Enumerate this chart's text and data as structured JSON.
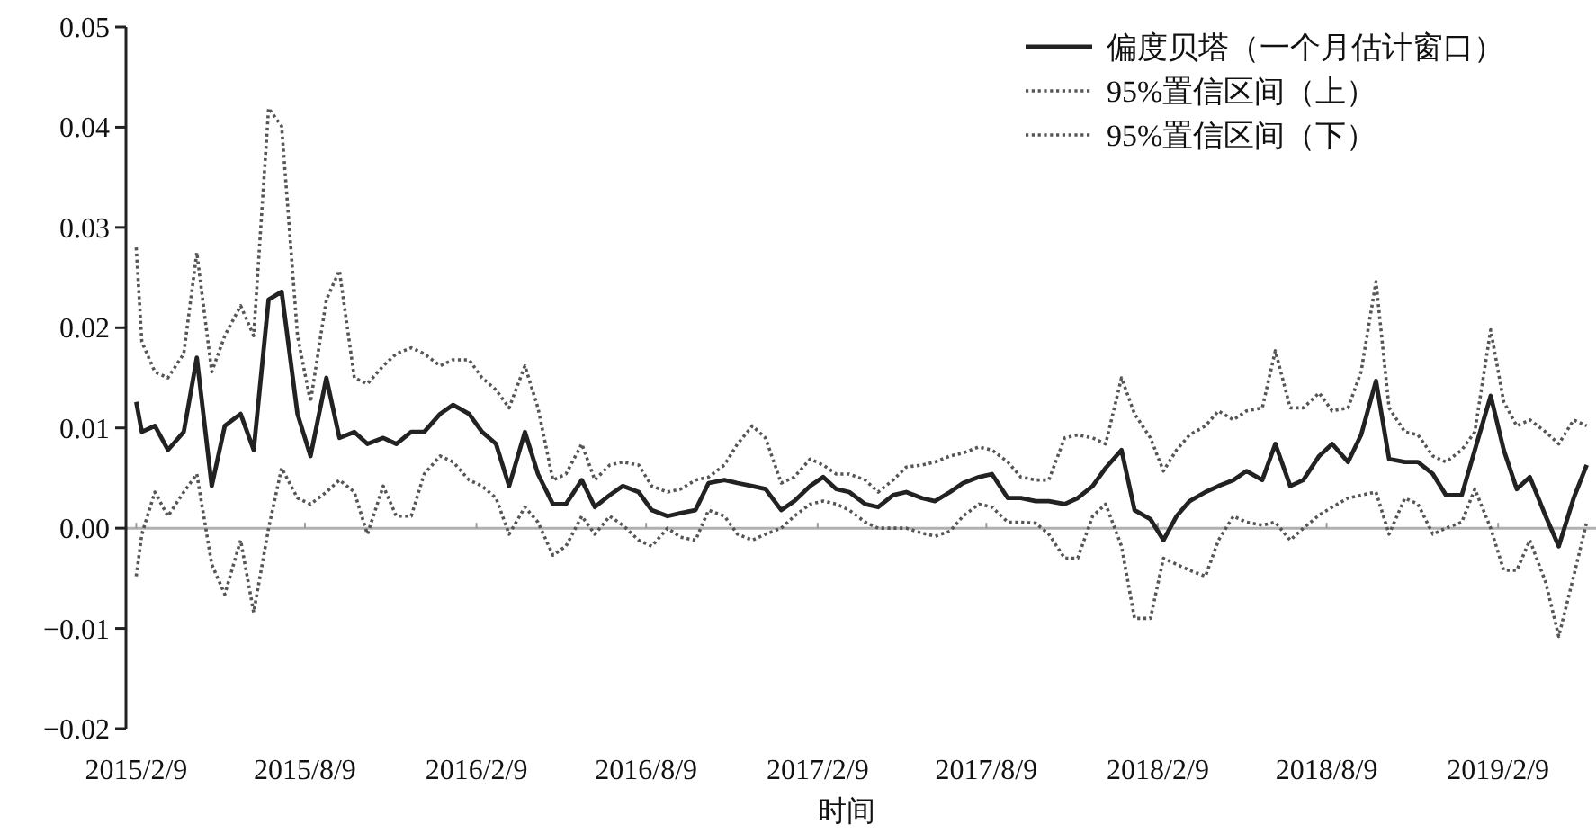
{
  "chart_data": {
    "type": "line",
    "xlabel": "时间",
    "legend": "top right",
    "xlim": [
      "2015-01-29",
      "2019-05-25"
    ],
    "ylim": [
      -0.02,
      0.05
    ],
    "xticks": [
      {
        "value": "2015-02-09",
        "label": "2015/2/9"
      },
      {
        "value": "2015-08-09",
        "label": "2015/8/9"
      },
      {
        "value": "2016-02-09",
        "label": "2016/2/9"
      },
      {
        "value": "2016-08-09",
        "label": "2016/8/9"
      },
      {
        "value": "2017-02-09",
        "label": "2017/2/9"
      },
      {
        "value": "2017-08-09",
        "label": "2017/8/9"
      },
      {
        "value": "2018-02-09",
        "label": "2018/2/9"
      },
      {
        "value": "2018-08-09",
        "label": "2018/8/9"
      },
      {
        "value": "2019-02-09",
        "label": "2019/2/9"
      }
    ],
    "yticks": [
      {
        "value": -0.02,
        "label": "−0.02"
      },
      {
        "value": -0.01,
        "label": "−0.01"
      },
      {
        "value": 0,
        "label": "0.00"
      },
      0.01,
      0.02,
      0.03,
      0.04,
      0.05
    ],
    "ref_lines": [
      {
        "axis": "y",
        "value": 0,
        "color": "#b0b0b0"
      }
    ],
    "x": [
      "2015-02-09",
      "2015-02-15",
      "2015-03-01",
      "2015-03-15",
      "2015-04-01",
      "2015-04-15",
      "2015-05-01",
      "2015-05-15",
      "2015-06-01",
      "2015-06-15",
      "2015-07-01",
      "2015-07-15",
      "2015-08-01",
      "2015-08-15",
      "2015-09-01",
      "2015-09-15",
      "2015-10-01",
      "2015-10-15",
      "2015-11-01",
      "2015-11-15",
      "2015-12-01",
      "2015-12-15",
      "2016-01-01",
      "2016-01-15",
      "2016-02-01",
      "2016-02-15",
      "2016-03-01",
      "2016-03-15",
      "2016-04-01",
      "2016-04-15",
      "2016-05-01",
      "2016-05-15",
      "2016-06-01",
      "2016-06-15",
      "2016-07-01",
      "2016-07-15",
      "2016-08-01",
      "2016-08-15",
      "2016-09-01",
      "2016-09-15",
      "2016-10-01",
      "2016-10-15",
      "2016-11-01",
      "2016-11-15",
      "2016-12-01",
      "2016-12-15",
      "2017-01-01",
      "2017-01-15",
      "2017-02-01",
      "2017-02-15",
      "2017-03-01",
      "2017-03-15",
      "2017-04-01",
      "2017-04-15",
      "2017-05-01",
      "2017-05-15",
      "2017-06-01",
      "2017-06-15",
      "2017-07-01",
      "2017-07-15",
      "2017-08-01",
      "2017-08-15",
      "2017-09-01",
      "2017-09-15",
      "2017-10-01",
      "2017-10-15",
      "2017-11-01",
      "2017-11-15",
      "2017-12-01",
      "2017-12-15",
      "2018-01-01",
      "2018-01-15",
      "2018-02-01",
      "2018-02-15",
      "2018-03-01",
      "2018-03-15",
      "2018-04-01",
      "2018-04-15",
      "2018-05-01",
      "2018-05-15",
      "2018-06-01",
      "2018-06-15",
      "2018-07-01",
      "2018-07-15",
      "2018-08-01",
      "2018-08-15",
      "2018-09-01",
      "2018-09-15",
      "2018-10-01",
      "2018-10-15",
      "2018-11-01",
      "2018-11-15",
      "2018-12-01",
      "2018-12-15",
      "2019-01-01",
      "2019-01-15",
      "2019-02-01",
      "2019-02-15",
      "2019-03-01",
      "2019-03-15",
      "2019-04-01",
      "2019-04-15",
      "2019-05-01",
      "2019-05-15"
    ],
    "series": [
      {
        "name": "偏度贝塔（一个月估计窗口）",
        "color": "#222222",
        "line_style": "solid",
        "values": [
          0.0126,
          0.0096,
          0.0102,
          0.0078,
          0.0096,
          0.017,
          0.0042,
          0.0102,
          0.0114,
          0.0078,
          0.0228,
          0.0236,
          0.0114,
          0.0072,
          0.015,
          0.009,
          0.0096,
          0.0084,
          0.009,
          0.0084,
          0.0096,
          0.0096,
          0.0114,
          0.0123,
          0.0114,
          0.0096,
          0.0084,
          0.0042,
          0.0096,
          0.0054,
          0.0024,
          0.0024,
          0.0048,
          0.0021,
          0.0033,
          0.0042,
          0.0036,
          0.0018,
          0.0012,
          0.0015,
          0.0018,
          0.0045,
          0.0048,
          0.0045,
          0.0042,
          0.0039,
          0.0018,
          0.0027,
          0.0042,
          0.0051,
          0.0039,
          0.0036,
          0.0024,
          0.0021,
          0.0033,
          0.0036,
          0.003,
          0.0027,
          0.0036,
          0.0045,
          0.0051,
          0.0054,
          0.003,
          0.003,
          0.0027,
          0.0027,
          0.0024,
          0.003,
          0.0042,
          0.006,
          0.0078,
          0.0018,
          0.0009,
          -0.0012,
          0.0012,
          0.0027,
          0.0036,
          0.0042,
          0.0048,
          0.0057,
          0.0048,
          0.0084,
          0.0042,
          0.0048,
          0.0072,
          0.0084,
          0.0066,
          0.0093,
          0.0147,
          0.0069,
          0.0066,
          0.0066,
          0.0054,
          0.0033,
          0.0033,
          0.0078,
          0.0132,
          0.0078,
          0.0039,
          0.0051,
          0.0012,
          -0.0018,
          0.003,
          0.0063
        ]
      },
      {
        "name": "95%置信区间（上）",
        "color": "#555555",
        "line_style": "dotted",
        "values": [
          0.028,
          0.0186,
          0.0156,
          0.015,
          0.0174,
          0.0275,
          0.0156,
          0.0192,
          0.0222,
          0.0192,
          0.0419,
          0.0401,
          0.0192,
          0.0126,
          0.0228,
          0.0257,
          0.015,
          0.0144,
          0.0162,
          0.0174,
          0.018,
          0.0174,
          0.0162,
          0.0168,
          0.0168,
          0.015,
          0.0138,
          0.012,
          0.0162,
          0.012,
          0.0048,
          0.0054,
          0.0084,
          0.0048,
          0.0063,
          0.0066,
          0.0063,
          0.0042,
          0.0036,
          0.0039,
          0.0048,
          0.0051,
          0.0063,
          0.0084,
          0.0102,
          0.009,
          0.0045,
          0.0051,
          0.0069,
          0.0063,
          0.0054,
          0.0054,
          0.0048,
          0.0036,
          0.0048,
          0.0061,
          0.0063,
          0.0066,
          0.0072,
          0.0075,
          0.0081,
          0.0078,
          0.0066,
          0.0051,
          0.0048,
          0.0048,
          0.009,
          0.0093,
          0.009,
          0.0084,
          0.015,
          0.0114,
          0.009,
          0.0057,
          0.0078,
          0.0093,
          0.0102,
          0.0117,
          0.0108,
          0.0117,
          0.012,
          0.0177,
          0.012,
          0.012,
          0.0135,
          0.0117,
          0.012,
          0.0156,
          0.0246,
          0.012,
          0.0096,
          0.0093,
          0.0072,
          0.0066,
          0.0078,
          0.0096,
          0.0198,
          0.0126,
          0.0102,
          0.0108,
          0.0096,
          0.0084,
          0.0108,
          0.0102
        ]
      },
      {
        "name": "95%置信区间（下）",
        "color": "#555555",
        "line_style": "dotted",
        "values": [
          -0.0048,
          -0.0006,
          0.0036,
          0.0012,
          0.0036,
          0.0054,
          -0.0036,
          -0.0066,
          -0.0012,
          -0.0084,
          0,
          0.006,
          0.003,
          0.0024,
          0.0036,
          0.0048,
          0.0036,
          -0.0006,
          0.0042,
          0.0012,
          0.0012,
          0.0054,
          0.0072,
          0.0066,
          0.0048,
          0.0042,
          0.003,
          -0.0006,
          0.0021,
          0.0006,
          -0.0027,
          -0.0018,
          0.0012,
          -0.0006,
          0.0012,
          0.0003,
          -0.0012,
          -0.0018,
          0,
          -0.0009,
          -0.0012,
          0.0018,
          0.0012,
          -0.0006,
          -0.0012,
          -0.0006,
          0,
          0.0012,
          0.0024,
          0.0027,
          0.0024,
          0.0018,
          0.0006,
          0,
          0,
          0,
          -0.0005,
          -0.0008,
          -0.0003,
          0.0012,
          0.0024,
          0.0021,
          0.0006,
          0.0006,
          0.0005,
          -0.0006,
          -0.003,
          -0.003,
          0.0012,
          0.0024,
          -0.0018,
          -0.009,
          -0.009,
          -0.003,
          -0.0036,
          -0.0042,
          -0.0048,
          -0.0012,
          0.0012,
          0.0006,
          0.0003,
          0.0006,
          -0.0012,
          0,
          0.0013,
          0.0021,
          0.003,
          0.0033,
          0.0036,
          -0.0006,
          0.003,
          0.0024,
          -0.0006,
          0,
          0.0006,
          0.0039,
          0,
          -0.0042,
          -0.0042,
          -0.0012,
          -0.0054,
          -0.0108,
          -0.0048,
          0.0006
        ]
      }
    ]
  }
}
